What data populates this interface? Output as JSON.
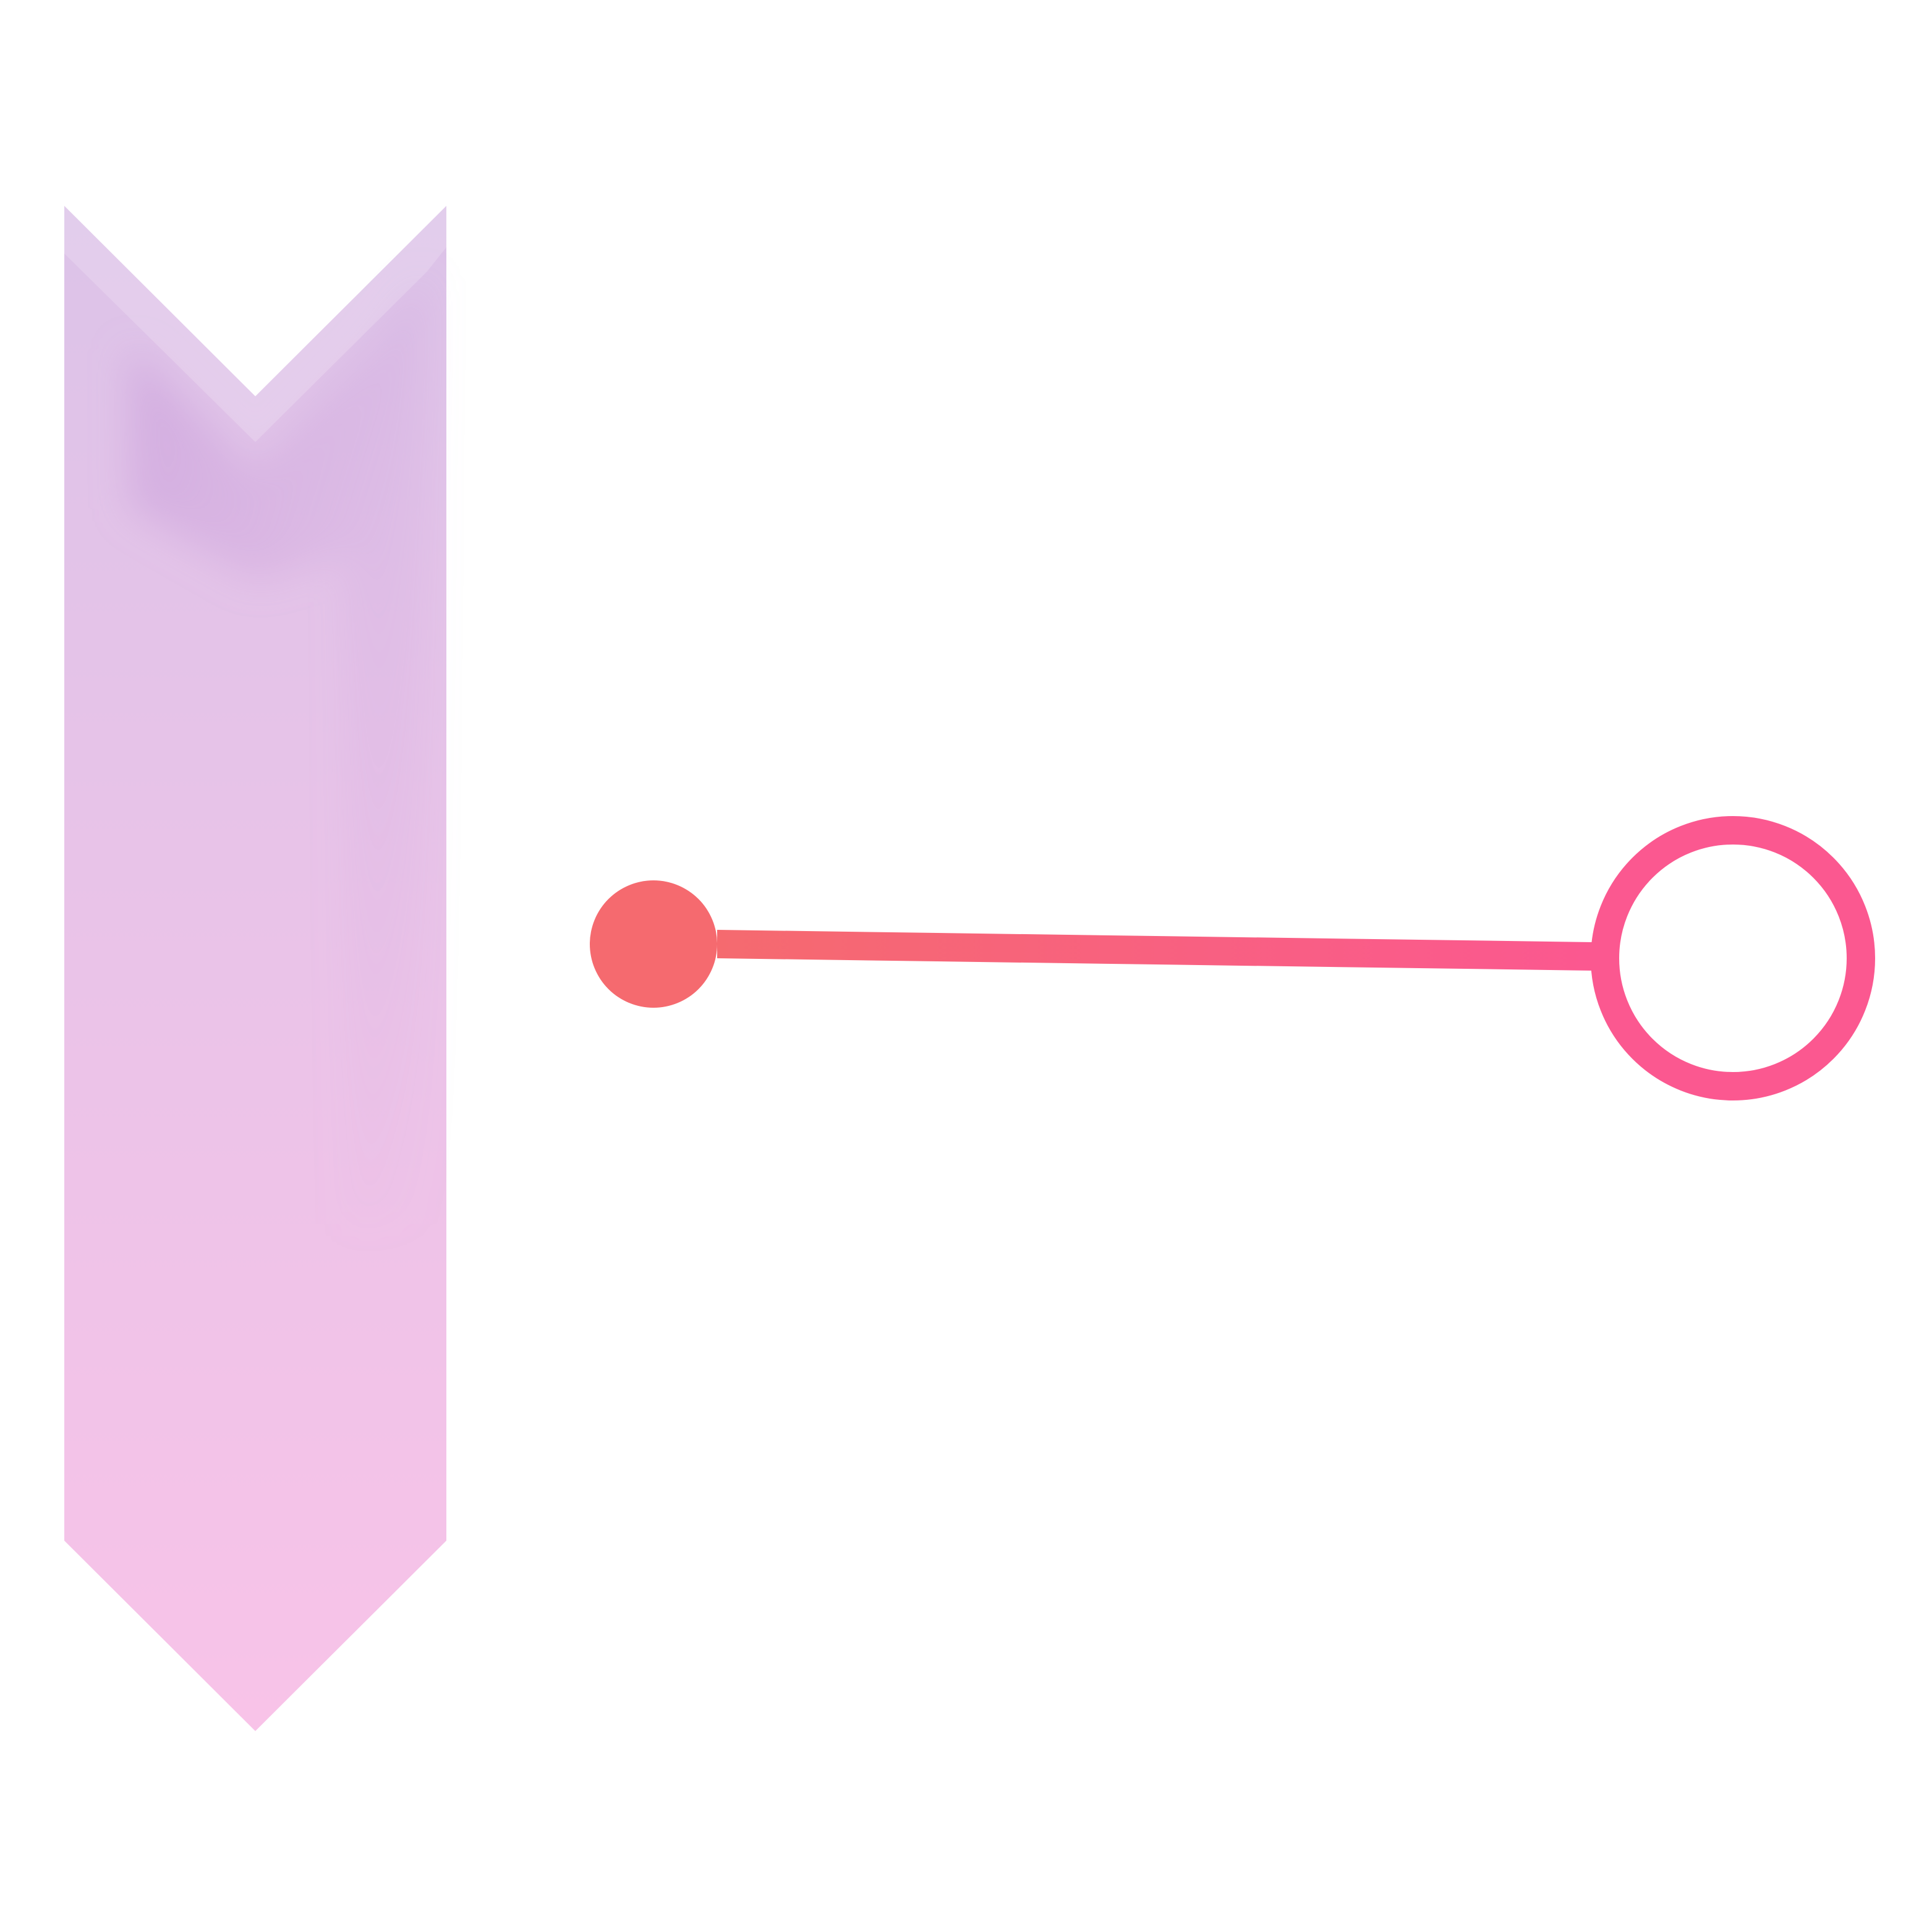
{
  "diagram": {
    "type": "connector-graphic",
    "text": [],
    "elements": [
      {
        "kind": "chevron-banner",
        "name": "pointer-banner-icon"
      },
      {
        "kind": "filled-dot",
        "name": "start-node-dot"
      },
      {
        "kind": "line",
        "name": "connector-line"
      },
      {
        "kind": "ring",
        "name": "end-node-ring"
      }
    ]
  },
  "colors": {
    "background": "#ffffff",
    "banner_top": "#dcc3e8",
    "banner_bottom": "#f8c3e8",
    "banner_shadow": "#c79ad9",
    "dot": "#f56a6f",
    "line_start": "#f56a6f",
    "line_end": "#fb5890",
    "ring": "#fb5890"
  }
}
